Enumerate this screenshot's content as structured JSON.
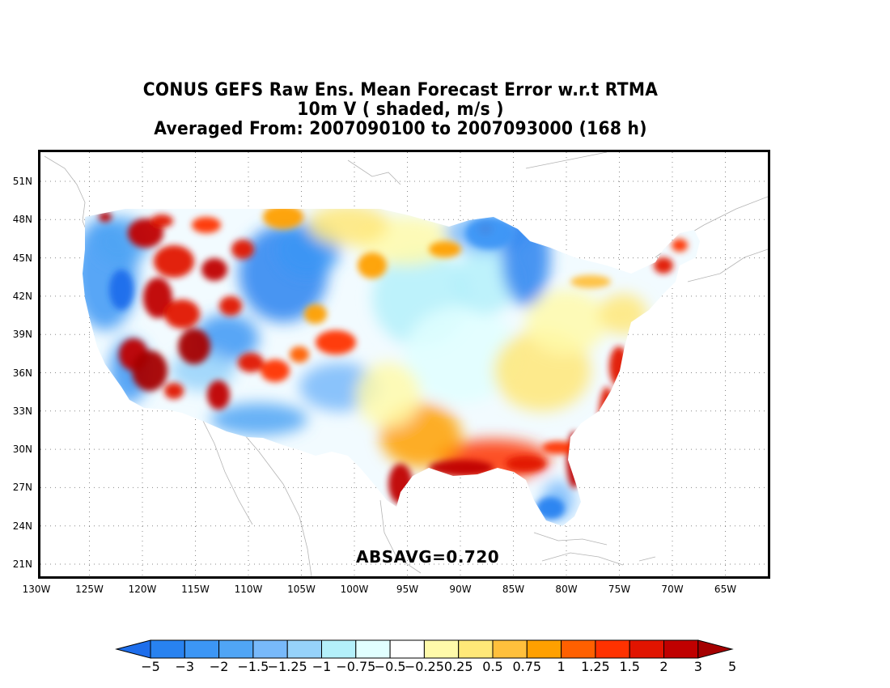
{
  "title": {
    "line1": "CONUS GEFS Raw Ens. Mean Forecast Error w.r.t RTMA",
    "line2": "10m V ( shaded, m/s )",
    "line3": "Averaged From: 2007090100 to 2007093000 (168 h)"
  },
  "map": {
    "lat_labels": [
      "51N",
      "48N",
      "45N",
      "42N",
      "39N",
      "36N",
      "33N",
      "30N",
      "27N",
      "24N",
      "21N"
    ],
    "lon_labels": [
      "130W",
      "125W",
      "120W",
      "115W",
      "110W",
      "105W",
      "100W",
      "95W",
      "90W",
      "85W",
      "80W",
      "75W",
      "70W",
      "65W"
    ],
    "grid": true,
    "stat_text": "ABSAVG=0.720"
  },
  "colorbar": {
    "labels": [
      "−5",
      "−3",
      "−2",
      "−1.5",
      "−1.25",
      "−1",
      "−0.75",
      "−0.5",
      "−0.25",
      "0.25",
      "0.5",
      "0.75",
      "1",
      "1.25",
      "1.5",
      "2",
      "3",
      "5"
    ],
    "colors": [
      "#1e6eeb",
      "#2882f0",
      "#3c96f5",
      "#50a5f5",
      "#78b9fa",
      "#96d2fa",
      "#b4f0fa",
      "#e1ffff",
      "#ffffff",
      "#fffaaa",
      "#ffe878",
      "#ffc03c",
      "#ffa000",
      "#ff6000",
      "#ff3200",
      "#e11400",
      "#c00000",
      "#a50000"
    ]
  }
}
